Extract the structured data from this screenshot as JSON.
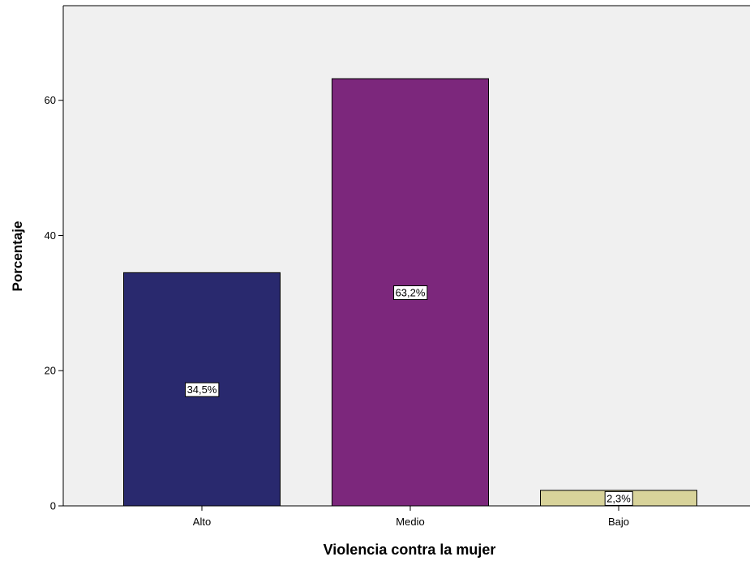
{
  "chart_data": {
    "type": "bar",
    "xlabel": "Violencia contra la mujer",
    "ylabel": "Porcentaje",
    "categories": [
      "Alto",
      "Medio",
      "Bajo"
    ],
    "values": [
      34.5,
      63.2,
      2.3
    ],
    "data_labels": [
      "34,5%",
      "63,2%",
      "2,3%"
    ],
    "colors": [
      "#29296e",
      "#7c277c",
      "#d8d39a"
    ],
    "plot_background": "#f0f0f0",
    "ylim": [
      0,
      74
    ],
    "yticks": [
      0,
      20,
      40,
      60
    ],
    "grid": false,
    "legend": "none"
  }
}
